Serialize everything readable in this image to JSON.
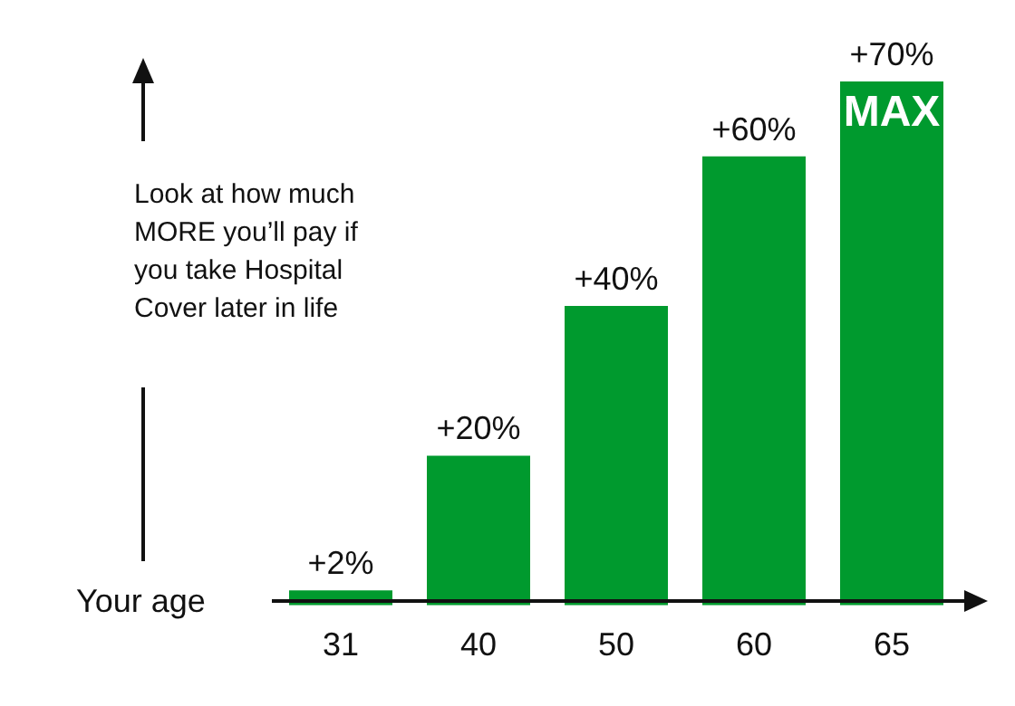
{
  "chart_data": {
    "type": "bar",
    "xlabel": "Your age",
    "categories": [
      "31",
      "40",
      "50",
      "60",
      "65"
    ],
    "values": [
      2,
      20,
      40,
      60,
      70
    ],
    "value_labels": [
      "+2%",
      "+20%",
      "+40%",
      "+60%",
      "+70%"
    ],
    "color": "#009a2e",
    "annotations": [
      "Look at how much MORE you’ll pay if you take Hospital Cover later in life",
      "MAX"
    ],
    "grid": false,
    "legend": false
  }
}
